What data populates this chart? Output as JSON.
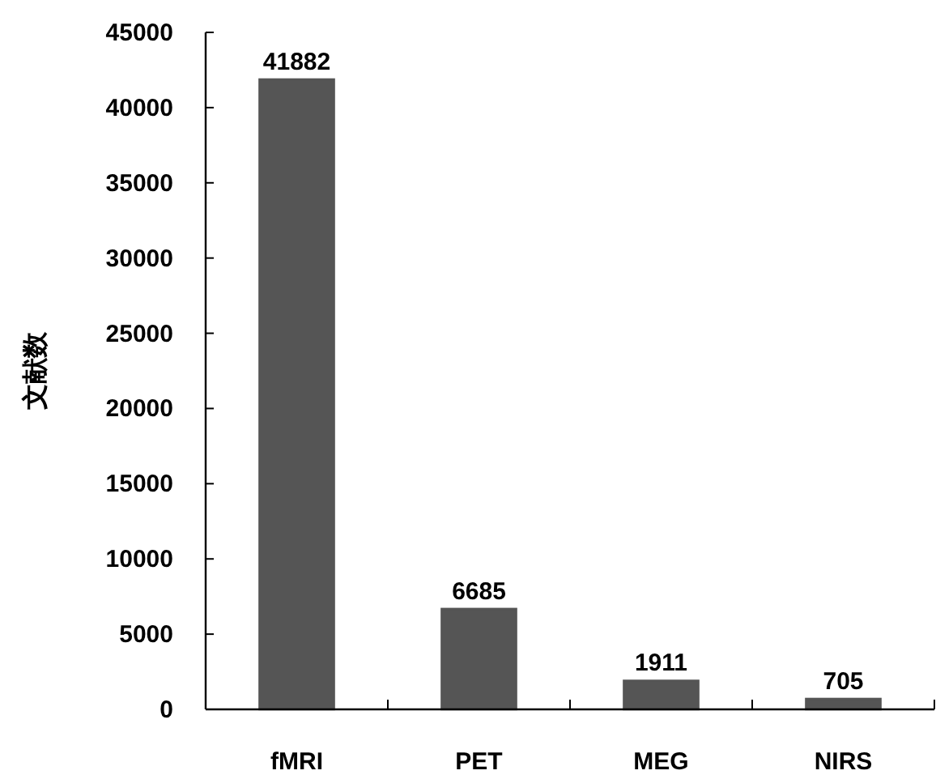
{
  "chart_data": {
    "type": "bar",
    "ylabel": "文献数",
    "categories": [
      "fMRI",
      "PET",
      "MEG",
      "NIRS"
    ],
    "values": [
      41882,
      6685,
      1911,
      705
    ],
    "color": "#555555",
    "ylim": [
      0,
      45000
    ],
    "yticks": [
      0,
      5000,
      10000,
      15000,
      20000,
      25000,
      30000,
      35000,
      40000,
      45000
    ],
    "data_labels": true,
    "grid": false
  }
}
